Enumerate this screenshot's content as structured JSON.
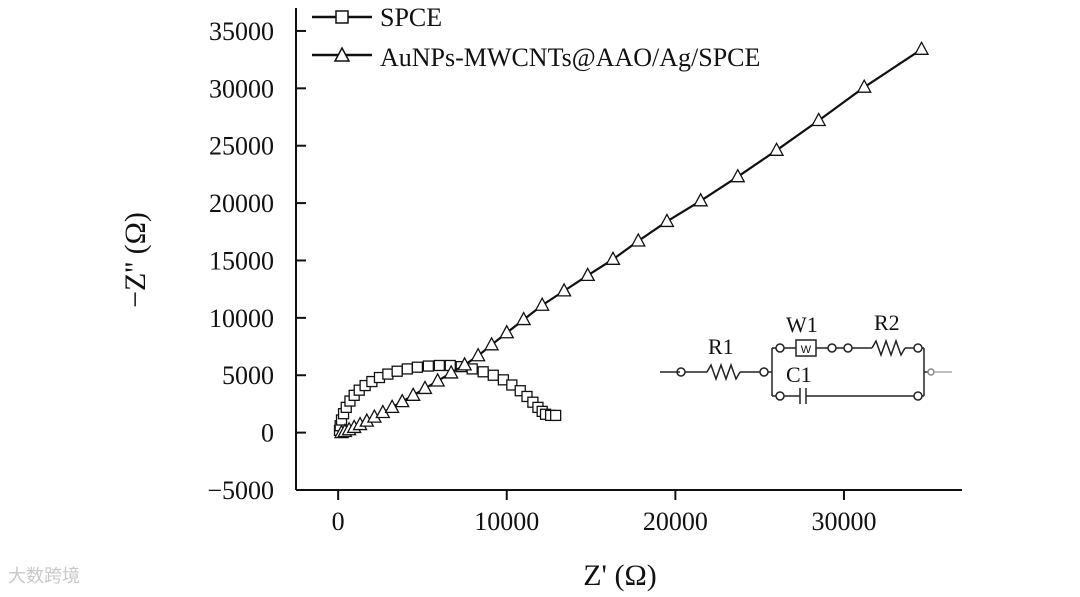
{
  "chart_data": {
    "type": "scatter",
    "xlabel": "Z' (Ω)",
    "ylabel": "−Z'' (Ω)",
    "xlim": [
      -2500,
      37000
    ],
    "ylim": [
      -5000,
      37000
    ],
    "xticks": [
      0,
      10000,
      20000,
      30000
    ],
    "yticks": [
      -5000,
      0,
      5000,
      10000,
      15000,
      20000,
      25000,
      30000,
      35000
    ],
    "xtick_labels": [
      "0",
      "10000",
      "20000",
      "30000"
    ],
    "ytick_labels": [
      "−5000",
      "0",
      "5000",
      "10000",
      "15000",
      "20000",
      "25000",
      "30000",
      "35000"
    ],
    "legend_position": "top-left",
    "grid": false,
    "series": [
      {
        "name": "SPCE",
        "marker": "square",
        "x": [
          80,
          120,
          200,
          320,
          480,
          700,
          950,
          1250,
          1600,
          2000,
          2450,
          2950,
          3500,
          4100,
          4700,
          5350,
          6000,
          6650,
          7300,
          7950,
          8600,
          9200,
          9800,
          10300,
          10800,
          11200,
          11550,
          11850,
          12100,
          12300,
          12600,
          12900
        ],
        "y": [
          200,
          600,
          1100,
          1650,
          2200,
          2750,
          3250,
          3700,
          4100,
          4450,
          4800,
          5100,
          5350,
          5550,
          5700,
          5800,
          5850,
          5850,
          5750,
          5550,
          5300,
          5000,
          4600,
          4150,
          3650,
          3150,
          2650,
          2200,
          1850,
          1600,
          1500,
          1500
        ]
      },
      {
        "name": "AuNPs-MWCNTs@AAO/Ag/SPCE",
        "marker": "triangle",
        "x": [
          200,
          400,
          650,
          950,
          1300,
          1700,
          2150,
          2650,
          3200,
          3800,
          4450,
          5150,
          5900,
          6700,
          7500,
          8300,
          9100,
          10000,
          11000,
          12100,
          13400,
          14800,
          16300,
          17800,
          19500,
          21500,
          23700,
          26000,
          28500,
          31200,
          34600
        ],
        "y": [
          0,
          100,
          250,
          450,
          700,
          1000,
          1350,
          1750,
          2200,
          2700,
          3250,
          3850,
          4500,
          5200,
          5900,
          6700,
          7650,
          8700,
          9850,
          11100,
          12350,
          13700,
          15100,
          16700,
          18400,
          20200,
          22300,
          24600,
          27200,
          30100,
          33400
        ]
      }
    ]
  },
  "circuit": {
    "r1": "R1",
    "w1": "W1",
    "w_symbol": "W",
    "r2": "R2",
    "c1": "C1"
  },
  "watermark": "大数跨境"
}
